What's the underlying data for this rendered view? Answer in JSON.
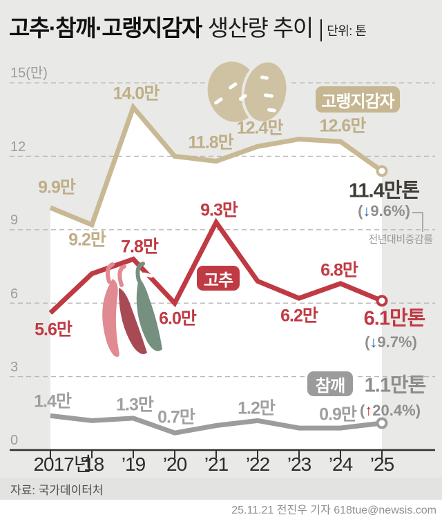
{
  "title": {
    "emphasis": "고추·참깨·고랭지감자",
    "rest": "생산량 추이",
    "unit": "단위: 톤"
  },
  "y_axis": {
    "t15": "15(만)",
    "t12": "12",
    "t9": "9",
    "t6": "6",
    "t3": "3",
    "t0": "0"
  },
  "x_axis": {
    "y2017": "2017년",
    "y18": "’18",
    "y19": "’19",
    "y20": "’20",
    "y21": "’21",
    "y22": "’22",
    "y23": "’23",
    "y24": "’24",
    "y25": "’25"
  },
  "series": {
    "potato": {
      "label": "고랭지감자",
      "points": {
        "v2017": "9.9만",
        "v18": "9.2만",
        "v19": "14.0만",
        "v21": "11.8만",
        "v22": "12.4만",
        "v24": "12.6만"
      },
      "final": "11.4만톤",
      "change": {
        "open": "(",
        "arrow": "↓",
        "pct": "9.6%",
        "close": ")"
      }
    },
    "pepper": {
      "label": "고추",
      "points": {
        "v2017": "5.6만",
        "v19": "7.8만",
        "v20": "6.0만",
        "v21": "9.3만",
        "v23": "6.2만",
        "v24": "6.8만"
      },
      "final": "6.1만톤",
      "change": {
        "open": "(",
        "arrow": "↓",
        "pct": "9.7%",
        "close": ")"
      }
    },
    "sesame": {
      "label": "참깨",
      "points": {
        "v2017": "1.4만",
        "v19": "1.3만",
        "v20": "0.7만",
        "v22": "1.2만",
        "v24": "0.9만"
      },
      "final": "1.1만톤",
      "change": {
        "open": "(",
        "arrow": "↑",
        "pct": "20.4%",
        "close": ")"
      }
    }
  },
  "note": "전년대비증감률",
  "footer": {
    "source": "자료: 국가데이터처",
    "byline": "25.11.21 전진우 기자 618tue@newsis.com"
  },
  "colors": {
    "potato": "#c8b994",
    "pepper": "#bf3a43",
    "sesame": "#9c9c9c",
    "down_arrow": "#1d65b0",
    "up_arrow": "#c5242c",
    "background": "#e9e9e7"
  },
  "chart_data": {
    "type": "line",
    "title": "고추·참깨·고랭지감자 생산량 추이",
    "unit": "톤",
    "y_axis_unit": "만",
    "x": [
      "2017",
      "2018",
      "2019",
      "2020",
      "2021",
      "2022",
      "2023",
      "2024",
      "2025"
    ],
    "ylim": [
      0,
      15
    ],
    "yticks": [
      0,
      3,
      6,
      9,
      12,
      15
    ],
    "grid": true,
    "legend_position": "inline-badges",
    "series": [
      {
        "name": "고랭지감자",
        "color": "#c8b994",
        "values": [
          9.9,
          9.2,
          14.0,
          12.0,
          11.8,
          12.4,
          12.7,
          12.6,
          11.4
        ],
        "final_label": "11.4만톤",
        "yoy_change_pct": -9.6
      },
      {
        "name": "고추",
        "color": "#bf3a43",
        "values": [
          5.6,
          7.2,
          7.8,
          6.0,
          9.3,
          6.9,
          6.2,
          6.8,
          6.1
        ],
        "final_label": "6.1만톤",
        "yoy_change_pct": -9.7
      },
      {
        "name": "참깨",
        "color": "#9c9c9c",
        "values": [
          1.4,
          1.2,
          1.3,
          0.7,
          1.0,
          1.2,
          0.9,
          0.9,
          1.1
        ],
        "final_label": "1.1만톤",
        "yoy_change_pct": 20.4
      }
    ],
    "annotation": "전년대비증감률"
  }
}
